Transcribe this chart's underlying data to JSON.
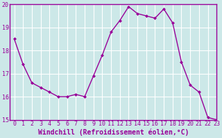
{
  "x": [
    0,
    1,
    2,
    3,
    4,
    5,
    6,
    7,
    8,
    9,
    10,
    11,
    12,
    13,
    14,
    15,
    16,
    17,
    18,
    19,
    20,
    21,
    22,
    23
  ],
  "y": [
    18.5,
    17.4,
    16.6,
    16.4,
    16.2,
    16.0,
    16.0,
    16.1,
    16.0,
    16.9,
    17.8,
    18.8,
    19.3,
    19.9,
    19.6,
    19.5,
    19.4,
    19.8,
    19.2,
    17.5,
    16.5,
    16.2,
    15.1,
    15.0
  ],
  "line_color": "#990099",
  "marker": "D",
  "marker_size": 2,
  "bg_color": "#cce8e8",
  "grid_color": "#ffffff",
  "xlabel": "Windchill (Refroidissement éolien,°C)",
  "xlabel_color": "#990099",
  "tick_color": "#990099",
  "axis_color": "#990099",
  "ylim": [
    15,
    20
  ],
  "xlim": [
    -0.5,
    23
  ],
  "yticks": [
    15,
    16,
    17,
    18,
    19,
    20
  ],
  "xticks": [
    0,
    1,
    2,
    3,
    4,
    5,
    6,
    7,
    8,
    9,
    10,
    11,
    12,
    13,
    14,
    15,
    16,
    17,
    18,
    19,
    20,
    21,
    22,
    23
  ],
  "xtick_labels": [
    "0",
    "1",
    "2",
    "3",
    "4",
    "5",
    "6",
    "7",
    "8",
    "9",
    "10",
    "11",
    "12",
    "13",
    "14",
    "15",
    "16",
    "17",
    "18",
    "19",
    "20",
    "21",
    "22",
    "23"
  ],
  "font_size": 6,
  "xlabel_fontsize": 7,
  "linewidth": 1.0
}
